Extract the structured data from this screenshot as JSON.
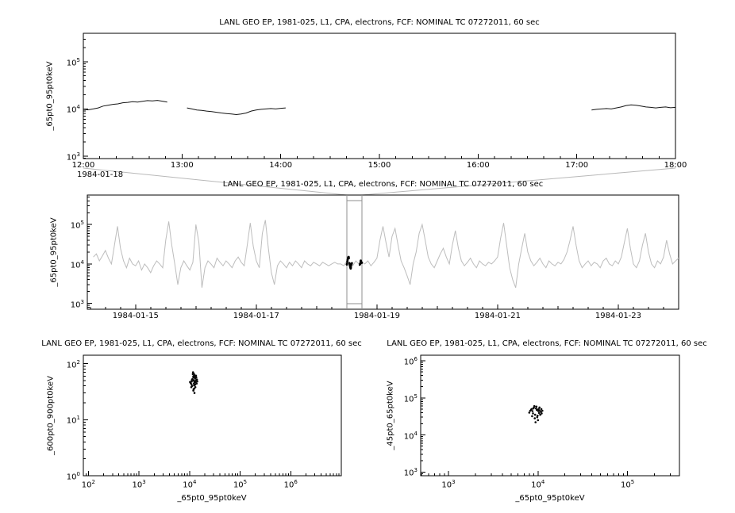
{
  "page": {
    "background": "#ffffff",
    "frame_color": "#000000"
  },
  "chart_data": [
    {
      "id": "detail",
      "type": "line",
      "title": "LANL GEO EP, 1981-025, L1, CPA, electrons, FCF: NOMINAL TC 07272011, 60 sec",
      "ylabel": "_65pt0_95pt0keV",
      "xlabel": "",
      "x_date_label": "1984-01-18",
      "x_axis": {
        "kind": "linear",
        "min": 12,
        "max": 18,
        "major": [
          12,
          13,
          14,
          15,
          16,
          17,
          18
        ],
        "labels": [
          "12:00",
          "13:00",
          "14:00",
          "15:00",
          "16:00",
          "17:00",
          "18:00"
        ],
        "minor_step": 0.1666667
      },
      "y_axis": {
        "kind": "log",
        "min": 2.95,
        "max": 5.6,
        "decades": [
          3,
          4,
          5
        ]
      },
      "line_color": "#141414",
      "y_scale": 1000,
      "segments": [
        {
          "x": [
            12.0,
            12.05,
            12.1,
            12.15,
            12.2,
            12.25,
            12.3,
            12.35,
            12.4,
            12.45,
            12.5,
            12.55,
            12.6,
            12.65,
            12.7,
            12.75,
            12.8,
            12.85
          ],
          "y": [
            9.8,
            9.6,
            10.0,
            10.5,
            11.5,
            12.0,
            12.5,
            12.8,
            13.5,
            13.8,
            14.2,
            14.0,
            14.5,
            15.0,
            14.8,
            15.2,
            14.6,
            14.0
          ]
        },
        {
          "x": [
            13.05,
            13.1,
            13.15,
            13.2,
            13.25,
            13.3,
            13.35,
            13.4,
            13.45,
            13.5,
            13.55,
            13.6,
            13.65,
            13.7,
            13.75,
            13.8,
            13.85,
            13.9,
            13.95,
            14.0,
            14.05
          ],
          "y": [
            10.5,
            10.0,
            9.5,
            9.3,
            9.0,
            8.8,
            8.5,
            8.2,
            8.0,
            7.8,
            7.6,
            7.8,
            8.2,
            9.0,
            9.5,
            9.8,
            10.0,
            10.2,
            10.0,
            10.3,
            10.5
          ]
        },
        {
          "x": [
            17.15,
            17.2,
            17.25,
            17.3,
            17.35,
            17.4,
            17.45,
            17.5,
            17.55,
            17.6,
            17.65,
            17.7,
            17.75,
            17.8,
            17.85,
            17.9,
            17.95,
            18.0
          ],
          "y": [
            9.5,
            9.8,
            10.0,
            10.2,
            10.0,
            10.5,
            11.0,
            11.8,
            12.2,
            12.0,
            11.5,
            11.0,
            10.8,
            10.5,
            10.8,
            11.0,
            10.6,
            10.8
          ]
        }
      ]
    },
    {
      "id": "overview",
      "type": "line",
      "title": "LANL GEO EP, 1981-025, L1, CPA, electrons, FCF: NOMINAL TC 07272011, 60 sec",
      "ylabel": "_65pt0_95pt0keV",
      "xlabel": "",
      "x_axis": {
        "kind": "linear",
        "min": 14.2,
        "max": 24.0,
        "major": [
          15,
          17,
          19,
          21,
          23
        ],
        "labels": [
          "1984-01-15",
          "1984-01-17",
          "1984-01-19",
          "1984-01-21",
          "1984-01-23"
        ],
        "minor_step": 0.25
      },
      "y_axis": {
        "kind": "log",
        "min": 2.85,
        "max": 5.75,
        "decades": [
          3,
          4,
          5
        ]
      },
      "line_color": "#bdbdbd",
      "y_scale": 1000,
      "series": {
        "x_start": 14.3,
        "x_step": 0.05,
        "y": [
          15,
          18,
          12,
          16,
          22,
          14,
          10,
          30,
          90,
          25,
          12,
          8,
          14,
          10,
          9,
          12,
          7,
          10,
          8,
          6,
          9,
          12,
          10,
          8,
          40,
          120,
          30,
          10,
          3,
          8,
          12,
          9,
          7,
          11,
          100,
          35,
          2.5,
          8,
          12,
          10,
          8,
          14,
          11,
          9,
          12,
          10,
          8,
          12,
          15,
          11,
          9,
          30,
          110,
          28,
          12,
          8,
          60,
          130,
          25,
          6,
          3,
          9,
          12,
          10,
          8,
          11,
          9,
          12,
          10,
          8,
          12,
          10,
          9,
          11,
          10,
          9,
          11,
          10,
          9,
          10,
          11,
          10,
          10,
          9,
          12,
          11,
          9,
          12,
          10,
          11,
          10,
          12,
          9,
          11,
          14,
          40,
          90,
          35,
          15,
          50,
          80,
          30,
          12,
          8,
          5,
          3,
          10,
          20,
          60,
          100,
          40,
          15,
          10,
          8,
          12,
          18,
          25,
          15,
          10,
          30,
          70,
          25,
          12,
          9,
          11,
          14,
          10,
          8,
          12,
          10,
          9,
          11,
          10,
          12,
          15,
          45,
          110,
          30,
          8,
          4,
          2.5,
          10,
          25,
          60,
          20,
          12,
          9,
          11,
          14,
          10,
          8,
          12,
          10,
          9,
          11,
          10,
          13,
          20,
          40,
          90,
          30,
          12,
          8,
          10,
          12,
          9,
          11,
          10,
          8,
          12,
          14,
          10,
          9,
          12,
          10,
          15,
          35,
          80,
          25,
          10,
          8,
          12,
          30,
          60,
          20,
          10,
          8,
          12,
          10,
          15,
          40,
          18,
          10,
          12,
          14,
          11,
          13
        ]
      },
      "selection": {
        "x_min": 18.5,
        "x_max": 18.75,
        "color": "#8f8f8f",
        "connector_color": "#b8b8b8"
      },
      "highlight": {
        "source": 0,
        "day": 18,
        "color": "#000000"
      }
    },
    {
      "id": "scatter-left",
      "type": "scatter",
      "title": "LANL GEO EP, 1981-025, L1, CPA, electrons, FCF: NOMINAL TC 07272011, 60 sec",
      "xlabel": "_65pt0_95pt0keV",
      "ylabel": "_600pt0_900pt0keV",
      "x_axis": {
        "kind": "log",
        "min": 1.9,
        "max": 7.0,
        "decades": [
          2,
          3,
          4,
          5,
          6
        ]
      },
      "y_axis": {
        "kind": "log",
        "min": 0.0,
        "max": 2.15,
        "decades": [
          0,
          1,
          2
        ]
      },
      "point_color": "#0a0a0a",
      "x_scale": 1000,
      "y_scale": 1,
      "points": {
        "x": [
          10.5,
          11,
          11.5,
          12,
          12.5,
          13,
          12,
          11.8,
          12.2,
          13.5,
          12.8,
          11.2,
          10.8,
          12.4,
          13.2,
          14,
          12.6,
          11.6,
          12.1,
          12.9,
          13.8,
          12.3,
          11.4,
          10.2,
          12.7,
          13.4,
          12.0,
          11.9,
          12.5,
          13.0,
          11.1,
          12.8,
          13.6,
          14.2,
          10.9,
          12.2,
          11.7
        ],
        "y": [
          45,
          48,
          52,
          50,
          47,
          55,
          60,
          58,
          44,
          50,
          42,
          40,
          38,
          36,
          46,
          52,
          62,
          65,
          57,
          49,
          44,
          41,
          53,
          47,
          59,
          61,
          35,
          33,
          30,
          38,
          51,
          54,
          57,
          48,
          43,
          66,
          70
        ]
      }
    },
    {
      "id": "scatter-right",
      "type": "scatter",
      "title": "LANL GEO EP, 1981-025, L1, CPA, electrons, FCF: NOMINAL TC 07272011, 60 sec",
      "xlabel": "_65pt0_95pt0keV",
      "ylabel": "_45pt0_65pt0keV",
      "x_axis": {
        "kind": "log",
        "min": 2.69,
        "max": 5.58,
        "decades": [
          3,
          4,
          5
        ]
      },
      "y_axis": {
        "kind": "log",
        "min": 2.9,
        "max": 6.15,
        "decades": [
          3,
          4,
          5,
          6
        ]
      },
      "point_color": "#0a0a0a",
      "x_scale": 1000,
      "y_scale": 1000,
      "points": {
        "x": [
          8.5,
          9,
          9.5,
          10,
          10.5,
          8.2,
          8.0,
          8.8,
          9.3,
          10.2,
          10.8,
          11,
          9.8,
          9.2,
          8.6,
          10.4,
          9.6,
          8.9,
          11.2,
          10.0,
          9.4,
          10.6,
          8.4,
          9.1,
          10.1,
          9.9,
          10.9,
          8.7,
          9.7,
          10.3
        ],
        "y": [
          50,
          55,
          52,
          48,
          45,
          45,
          40,
          38,
          35,
          50,
          42,
          38,
          30,
          28,
          32,
          55,
          58,
          52,
          45,
          25,
          22,
          35,
          48,
          60,
          44,
          33,
          50,
          44,
          47,
          39
        ]
      }
    }
  ]
}
